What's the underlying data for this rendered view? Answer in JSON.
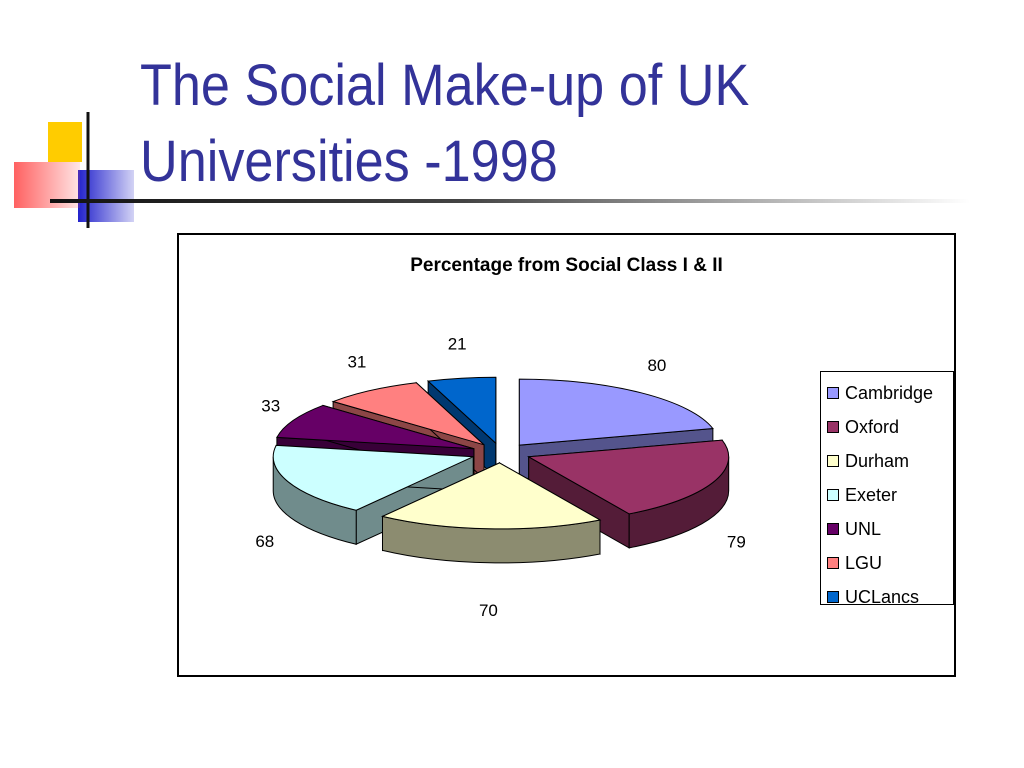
{
  "slide": {
    "title_lines": [
      "The Social Make-up of UK",
      "Universities -1998"
    ]
  },
  "chart_data": {
    "type": "pie",
    "title": "Percentage from Social Class I & II",
    "categories": [
      "Cambridge",
      "Oxford",
      "Durham",
      "Exeter",
      "UNL",
      "LGU",
      "UCLancs"
    ],
    "values": [
      80,
      79,
      70,
      68,
      33,
      31,
      21
    ],
    "value_labels": [
      "80",
      "79",
      "70",
      "68",
      "33",
      "31",
      "21"
    ],
    "colors": [
      "#9999ff",
      "#993366",
      "#ffffcc",
      "#ccffff",
      "#660066",
      "#ff8080",
      "#0066cc"
    ],
    "exploded": true,
    "three_d": true,
    "legend_position": "right"
  }
}
